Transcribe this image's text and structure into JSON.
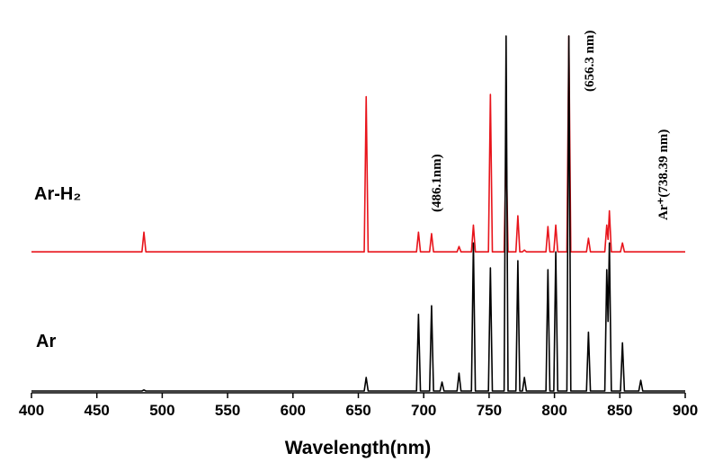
{
  "chart_data": {
    "type": "line",
    "x_label": "Wavelength(nm)",
    "xlim": [
      400,
      900
    ],
    "xticks": [
      400,
      450,
      500,
      550,
      600,
      650,
      700,
      750,
      800,
      850,
      900
    ],
    "ylim": [
      0,
      100
    ],
    "x": [
      400,
      484.5,
      486,
      487.5,
      654.5,
      656,
      657.5,
      694.5,
      696,
      697.5,
      704.5,
      706,
      707.5,
      712.5,
      714,
      715.5,
      725.5,
      727,
      728.5,
      736.5,
      738,
      739.5,
      749.5,
      751,
      752.5,
      761.5,
      763,
      764.5,
      770.5,
      772,
      773.5,
      775.5,
      777,
      778.5,
      793.5,
      795,
      796.5,
      799.5,
      801,
      802.5,
      809.5,
      811,
      812.5,
      824.5,
      826,
      827.5,
      838.5,
      840,
      841,
      842,
      843.5,
      850.5,
      852,
      853.5,
      864.5,
      866,
      867.5,
      900
    ],
    "series": [
      {
        "name": "Ar-H₂",
        "color": "#e8141b",
        "values": [
          39.5,
          39.5,
          45,
          39.5,
          39.5,
          83,
          39.5,
          39.5,
          45,
          39.5,
          39.5,
          44.6,
          39.5,
          39.5,
          39.5,
          39.5,
          39.5,
          41,
          39.5,
          39.5,
          47,
          39.5,
          39.5,
          83.6,
          39.5,
          39.5,
          70,
          39.5,
          39.5,
          49.6,
          39.5,
          39.5,
          40,
          39.5,
          39.5,
          46.6,
          39.5,
          39.5,
          47,
          39.5,
          39.5,
          100,
          39.5,
          39.5,
          43.3,
          39.5,
          39.5,
          47,
          43,
          51,
          39.5,
          39.5,
          42,
          39.5,
          39.5,
          39.5,
          39.5,
          39.5
        ]
      },
      {
        "name": "Ar",
        "color": "#000000",
        "values": [
          0.5,
          0.5,
          0.8,
          0.5,
          0.5,
          4.3,
          0.5,
          0.5,
          22,
          0.5,
          0.5,
          24.4,
          0.5,
          0.5,
          3,
          0.5,
          0.5,
          5.5,
          0.5,
          0.5,
          42,
          0.5,
          0.5,
          35,
          0.5,
          0.5,
          100,
          0.5,
          0.5,
          37,
          0.5,
          0.5,
          4.3,
          0.5,
          0.5,
          34.5,
          0.5,
          0.5,
          39.5,
          0.5,
          0.5,
          100,
          0.5,
          0.5,
          17,
          0.5,
          0.5,
          34.5,
          20,
          42,
          0.5,
          0.5,
          14,
          0.5,
          0.5,
          3.5,
          0.5,
          0.5
        ]
      }
    ],
    "annotations": [
      "(486.1nm)",
      "(656.3 nm)",
      "Ar⁺(738.39 nm)"
    ]
  }
}
